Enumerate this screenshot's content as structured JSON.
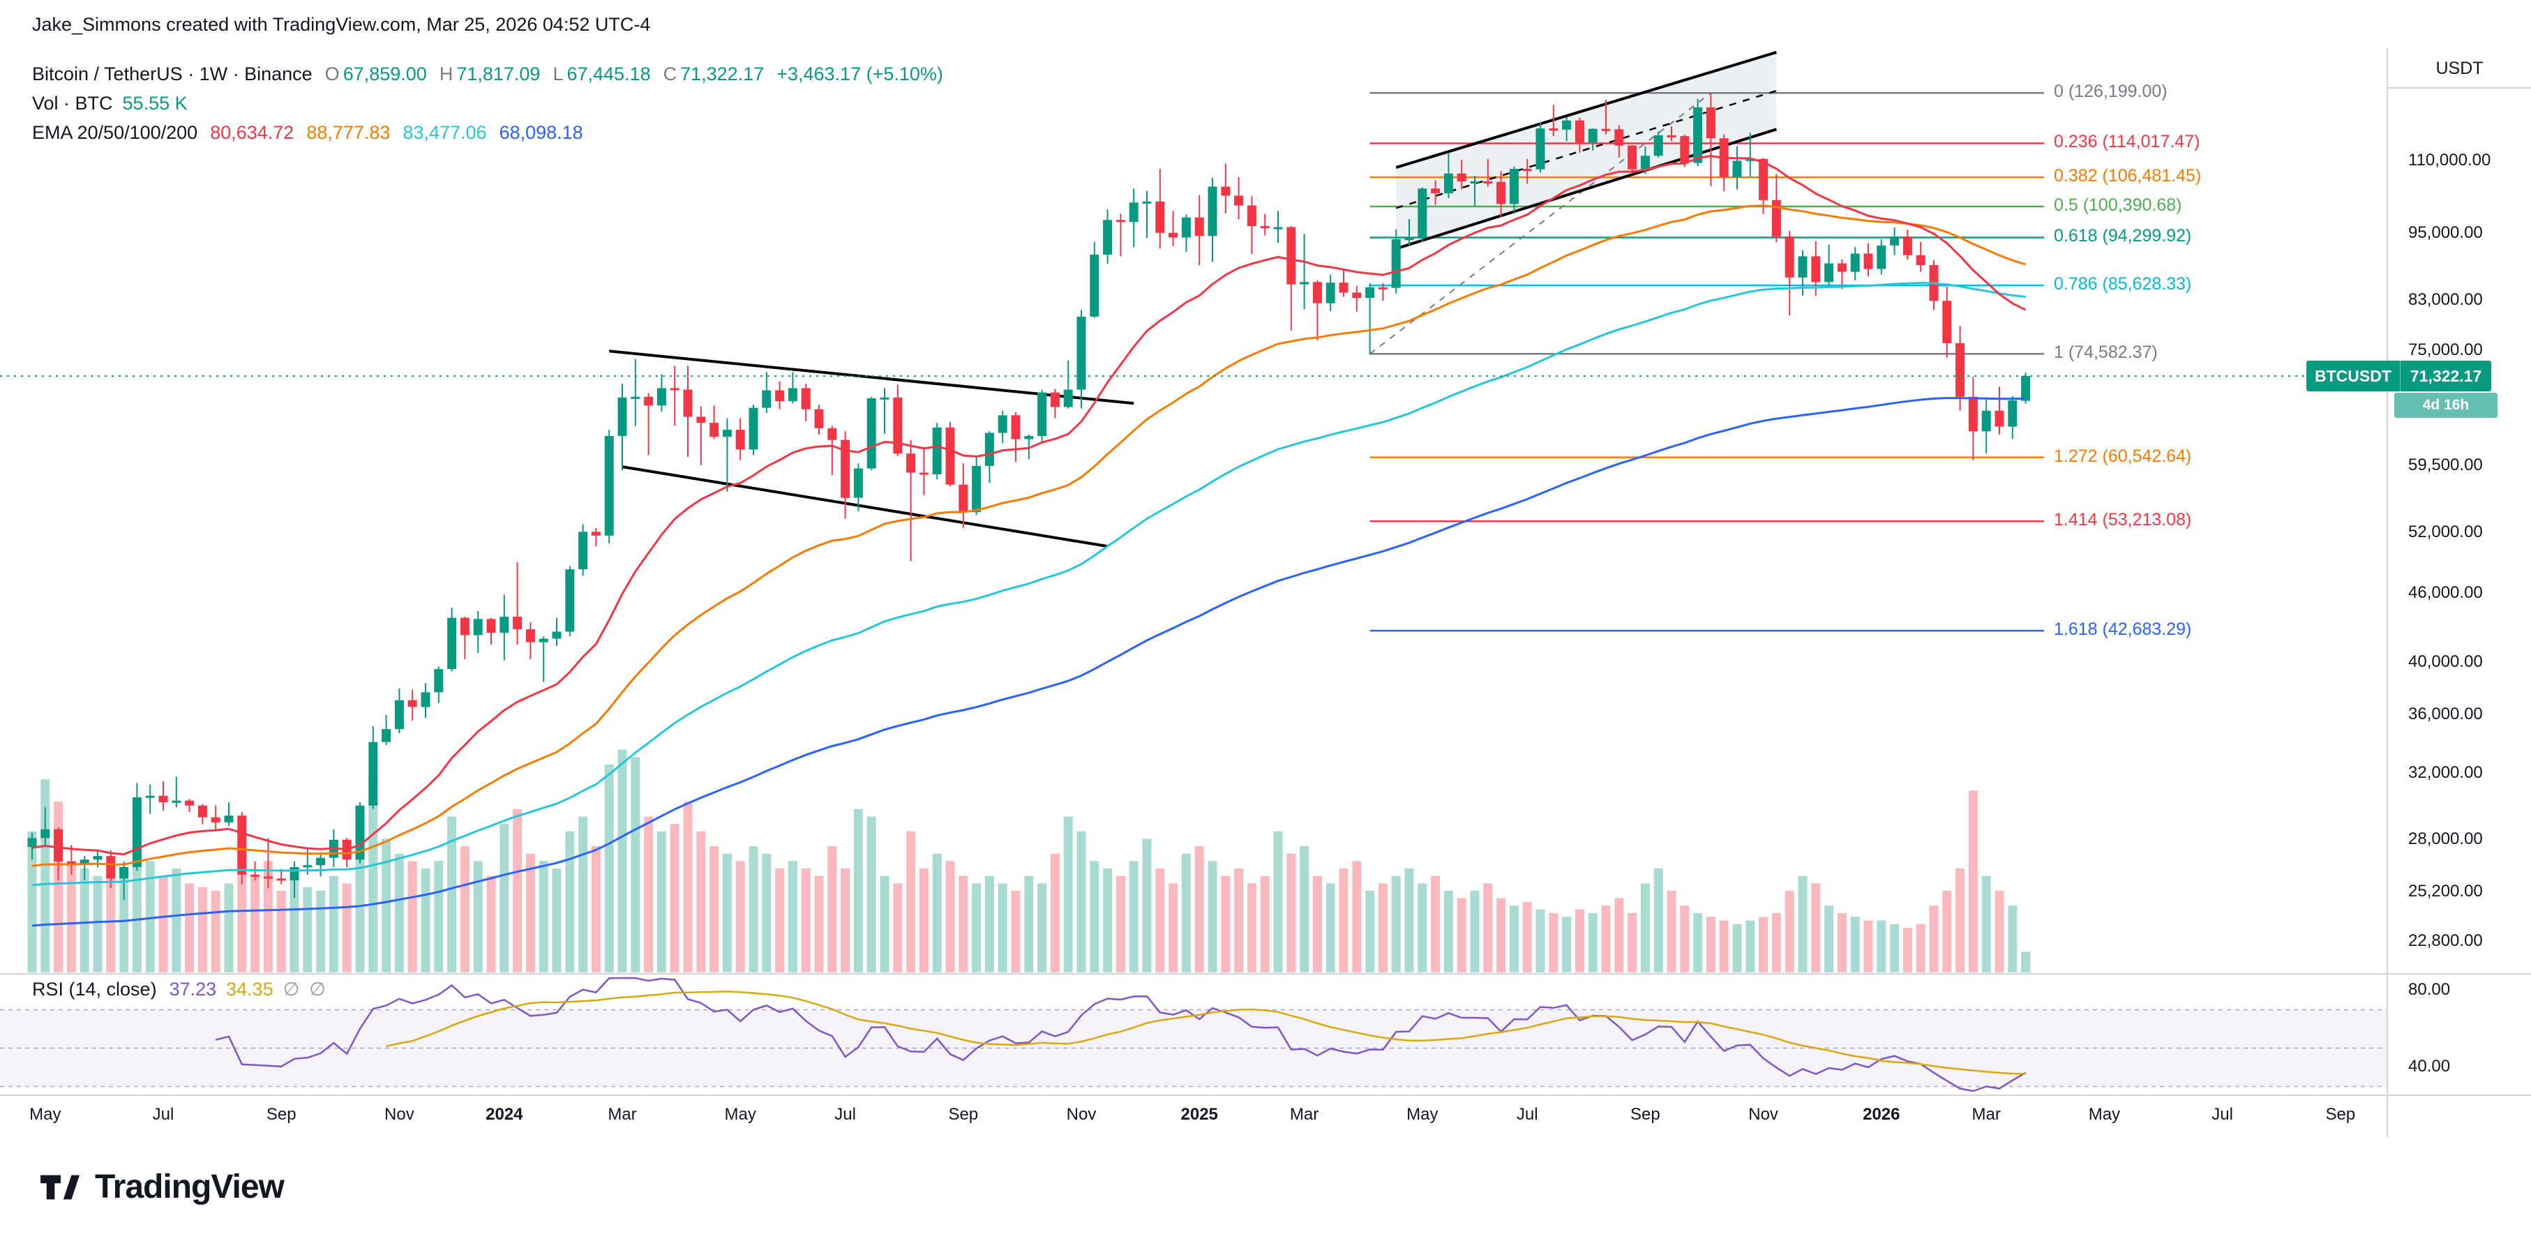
{
  "attribution": "Jake_Simmons created with TradingView.com, Mar 25, 2026 04:52 UTC-4",
  "header": {
    "symbol": "Bitcoin / TetherUS · 1W · Binance",
    "ohlc": [
      {
        "label": "O",
        "value": "67,859.00"
      },
      {
        "label": "H",
        "value": "71,817.09"
      },
      {
        "label": "L",
        "value": "67,445.18"
      },
      {
        "label": "C",
        "value": "71,322.17"
      }
    ],
    "change": "+3,463.17 (+5.10%)",
    "vol_label": "Vol · BTC",
    "vol_value": "55.55 K",
    "ema_label": "EMA 20/50/100/200",
    "ema_values": [
      {
        "value": "80,634.72",
        "color": "#f23645"
      },
      {
        "value": "88,777.83",
        "color": "#f57c00"
      },
      {
        "value": "83,477.06",
        "color": "#26c6da"
      },
      {
        "value": "68,098.18",
        "color": "#2962ff"
      }
    ]
  },
  "rsi_header": {
    "label": "RSI (14, close)",
    "rsi_value": "37.23",
    "ma_value": "34.35",
    "hidden1": "∅",
    "hidden2": "∅"
  },
  "axis": {
    "unit": "USDT"
  },
  "badge": {
    "symbol": "BTCUSDT",
    "price": "71,322.17",
    "countdown": "4d 16h"
  },
  "logo_text": "TradingView",
  "chart_data": {
    "type": "candlestick",
    "title": "Bitcoin / TetherUS · 1W · Binance",
    "interval": "1W",
    "scale": "log",
    "price_unit_multiplier": 1000,
    "volume_unit": "K BTC",
    "vol_scale_max": 620,
    "colors": {
      "up": "#089981",
      "down": "#f23645",
      "vol_up": "rgba(8,153,129,0.35)",
      "vol_down": "rgba(242,54,69,0.35)"
    },
    "ema": {
      "periods": [
        20,
        50,
        100,
        200
      ],
      "colors": [
        "#f23645",
        "#f57c00",
        "#26c6da",
        "#2962ff"
      ],
      "seeds": [
        27.5,
        26.5,
        25.5,
        23.5
      ]
    },
    "rsi": {
      "period": 14,
      "color": "#7e57c2",
      "ma_color": "#d9a80d",
      "band": [
        30,
        70
      ],
      "band_fill": "rgba(126,87,194,0.08)"
    },
    "fib_start_week": 102,
    "fib_levels": [
      {
        "label": "0 (126,199.00)",
        "price": 126199.0,
        "color": "#787b86"
      },
      {
        "label": "0.236 (114,017.47)",
        "price": 114017.47,
        "color": "#f23645"
      },
      {
        "label": "0.382 (106,481.45)",
        "price": 106481.45,
        "color": "#f57c00"
      },
      {
        "label": "0.5 (100,390.68)",
        "price": 100390.68,
        "color": "#4caf50"
      },
      {
        "label": "0.618 (94,299.92)",
        "price": 94299.92,
        "color": "#089981"
      },
      {
        "label": "0.786 (85,628.33)",
        "price": 85628.33,
        "color": "#00bcd4"
      },
      {
        "label": "1 (74,582.37)",
        "price": 74582.37,
        "color": "#787b86"
      },
      {
        "label": "1.272 (60,542.64)",
        "price": 60542.64,
        "color": "#f57c00"
      },
      {
        "label": "1.414 (53,213.08)",
        "price": 53213.08,
        "color": "#f23645"
      },
      {
        "label": "1.618 (42,683.29)",
        "price": 42683.29,
        "color": "#2962ff"
      }
    ],
    "drawings": {
      "down_channel": {
        "color": "#000000",
        "upper": [
          [
            44,
            75.0
          ],
          [
            84,
            67.5
          ]
        ],
        "lower": [
          [
            45,
            59.4
          ],
          [
            82,
            50.6
          ]
        ]
      },
      "up_channel": {
        "color": "#000000",
        "fill": "rgba(96,133,153,0.12)",
        "lower": [
          [
            104,
            92.2
          ],
          [
            133,
            117.3
          ]
        ],
        "upper": [
          [
            104,
            108.6
          ],
          [
            133,
            137.0
          ]
        ]
      },
      "fib_trendline": {
        "color": "#787b86",
        "from": [
          102,
          74.582
        ],
        "to": [
          128,
          126.199
        ]
      }
    },
    "price_ticks": [
      {
        "v": 110000,
        "t": "110,000.00"
      },
      {
        "v": 95000,
        "t": "95,000.00"
      },
      {
        "v": 83000,
        "t": "83,000.00"
      },
      {
        "v": 75000,
        "t": "75,000.00"
      },
      {
        "v": 59500,
        "t": "59,500.00"
      },
      {
        "v": 52000,
        "t": "52,000.00"
      },
      {
        "v": 46000,
        "t": "46,000.00"
      },
      {
        "v": 40000,
        "t": "40,000.00"
      },
      {
        "v": 36000,
        "t": "36,000.00"
      },
      {
        "v": 32000,
        "t": "32,000.00"
      },
      {
        "v": 28000,
        "t": "28,000.00"
      },
      {
        "v": 25200,
        "t": "25,200.00"
      },
      {
        "v": 22800,
        "t": "22,800.00"
      }
    ],
    "rsi_ticks": [
      {
        "v": 80,
        "t": "80.00"
      },
      {
        "v": 40,
        "t": "40.00"
      }
    ],
    "time_labels": [
      {
        "t": "May",
        "w": 1
      },
      {
        "t": "Jul",
        "w": 10
      },
      {
        "t": "Sep",
        "w": 19
      },
      {
        "t": "Nov",
        "w": 28
      },
      {
        "t": "2024",
        "w": 36,
        "year": true
      },
      {
        "t": "Mar",
        "w": 45
      },
      {
        "t": "May",
        "w": 54
      },
      {
        "t": "Jul",
        "w": 62
      },
      {
        "t": "Sep",
        "w": 71
      },
      {
        "t": "Nov",
        "w": 80
      },
      {
        "t": "2025",
        "w": 89,
        "year": true
      },
      {
        "t": "Mar",
        "w": 97
      },
      {
        "t": "May",
        "w": 106
      },
      {
        "t": "Jul",
        "w": 114
      },
      {
        "t": "Sep",
        "w": 123
      },
      {
        "t": "Nov",
        "w": 132
      },
      {
        "t": "2026",
        "w": 141,
        "year": true
      },
      {
        "t": "Mar",
        "w": 149
      },
      {
        "t": "May",
        "w": 158
      },
      {
        "t": "Jul",
        "w": 167
      },
      {
        "t": "Sep",
        "w": 176
      }
    ],
    "candles": [
      [
        27.6,
        28.4,
        26.9,
        28.1,
        380
      ],
      [
        28.1,
        29.9,
        27.7,
        28.6,
        520
      ],
      [
        28.6,
        28.7,
        25.8,
        26.8,
        460
      ],
      [
        26.8,
        27.7,
        26.1,
        26.7,
        300
      ],
      [
        26.7,
        27.1,
        25.8,
        26.9,
        280
      ],
      [
        26.9,
        27.4,
        26.5,
        27.1,
        260
      ],
      [
        27.1,
        27.4,
        25.4,
        25.9,
        300
      ],
      [
        25.9,
        26.8,
        24.8,
        26.5,
        280
      ],
      [
        26.5,
        31.4,
        26.3,
        30.5,
        420
      ],
      [
        30.5,
        31.3,
        29.5,
        30.6,
        300
      ],
      [
        30.6,
        31.5,
        29.7,
        30.2,
        260
      ],
      [
        30.2,
        31.8,
        29.9,
        30.3,
        280
      ],
      [
        30.3,
        30.4,
        29.6,
        30.0,
        240
      ],
      [
        30.0,
        30.1,
        28.9,
        29.3,
        230
      ],
      [
        29.3,
        30.0,
        28.6,
        29.0,
        220
      ],
      [
        29.0,
        30.2,
        28.8,
        29.4,
        240
      ],
      [
        29.4,
        29.6,
        25.6,
        26.1,
        380
      ],
      [
        26.1,
        26.8,
        25.8,
        26.0,
        260
      ],
      [
        26.0,
        28.1,
        25.4,
        25.9,
        300
      ],
      [
        25.9,
        26.4,
        25.6,
        25.8,
        220
      ],
      [
        25.8,
        26.8,
        24.9,
        26.5,
        260
      ],
      [
        26.5,
        27.5,
        26.1,
        26.6,
        230
      ],
      [
        26.6,
        27.3,
        26.0,
        27.0,
        220
      ],
      [
        27.0,
        28.6,
        26.5,
        28.0,
        260
      ],
      [
        28.0,
        28.1,
        26.5,
        26.9,
        240
      ],
      [
        26.9,
        30.2,
        26.7,
        30.0,
        380
      ],
      [
        30.0,
        35.2,
        29.8,
        34.1,
        520
      ],
      [
        34.1,
        36.0,
        33.9,
        35.0,
        360
      ],
      [
        35.0,
        38.0,
        34.7,
        37.1,
        320
      ],
      [
        37.1,
        37.9,
        35.6,
        36.6,
        300
      ],
      [
        36.6,
        38.4,
        35.8,
        37.7,
        280
      ],
      [
        37.7,
        39.7,
        36.9,
        39.5,
        300
      ],
      [
        39.5,
        44.7,
        39.3,
        43.8,
        420
      ],
      [
        43.8,
        43.9,
        40.3,
        42.3,
        340
      ],
      [
        42.3,
        44.4,
        40.8,
        43.7,
        300
      ],
      [
        43.7,
        43.8,
        41.5,
        42.5,
        260
      ],
      [
        42.5,
        45.9,
        40.2,
        43.9,
        400
      ],
      [
        43.9,
        49.0,
        41.5,
        42.8,
        440
      ],
      [
        42.8,
        43.4,
        40.3,
        41.7,
        320
      ],
      [
        41.7,
        42.2,
        38.5,
        42.0,
        300
      ],
      [
        42.0,
        43.8,
        41.4,
        42.6,
        280
      ],
      [
        42.6,
        48.6,
        42.2,
        48.3,
        380
      ],
      [
        48.3,
        52.9,
        47.7,
        52.1,
        420
      ],
      [
        52.1,
        52.5,
        50.6,
        51.7,
        340
      ],
      [
        51.7,
        64.0,
        50.9,
        63.2,
        560
      ],
      [
        63.2,
        70.2,
        59.0,
        68.3,
        600
      ],
      [
        68.3,
        73.8,
        64.5,
        68.4,
        580
      ],
      [
        68.4,
        68.9,
        60.8,
        67.2,
        420
      ],
      [
        67.2,
        71.6,
        66.4,
        69.6,
        380
      ],
      [
        69.6,
        72.8,
        64.5,
        69.4,
        400
      ],
      [
        69.4,
        72.8,
        60.6,
        65.7,
        460
      ],
      [
        65.7,
        67.1,
        59.6,
        64.9,
        380
      ],
      [
        64.9,
        67.2,
        62.8,
        63.1,
        340
      ],
      [
        63.1,
        65.5,
        56.5,
        64.0,
        320
      ],
      [
        64.0,
        65.5,
        60.2,
        61.5,
        300
      ],
      [
        61.5,
        67.3,
        60.8,
        66.9,
        340
      ],
      [
        66.9,
        71.9,
        66.2,
        69.3,
        320
      ],
      [
        69.3,
        70.6,
        66.7,
        67.8,
        280
      ],
      [
        67.8,
        71.9,
        67.5,
        69.6,
        300
      ],
      [
        69.6,
        70.2,
        65.1,
        66.7,
        280
      ],
      [
        66.7,
        67.3,
        63.4,
        64.2,
        260
      ],
      [
        64.2,
        64.5,
        58.4,
        62.7,
        340
      ],
      [
        62.7,
        63.8,
        53.5,
        55.8,
        280
      ],
      [
        55.8,
        59.8,
        54.3,
        59.2,
        440
      ],
      [
        59.2,
        68.4,
        59.0,
        68.2,
        420
      ],
      [
        68.2,
        69.6,
        63.5,
        68.3,
        260
      ],
      [
        68.3,
        70.1,
        60.7,
        61.0,
        240
      ],
      [
        61.0,
        62.7,
        49.1,
        58.7,
        380
      ],
      [
        58.7,
        61.8,
        56.1,
        58.5,
        280
      ],
      [
        58.5,
        64.9,
        57.9,
        64.3,
        320
      ],
      [
        64.3,
        65.0,
        57.1,
        57.3,
        300
      ],
      [
        57.3,
        59.8,
        52.5,
        54.2,
        260
      ],
      [
        54.2,
        60.6,
        53.9,
        59.5,
        240
      ],
      [
        59.5,
        63.8,
        57.5,
        63.6,
        260
      ],
      [
        63.6,
        66.5,
        62.3,
        65.9,
        240
      ],
      [
        65.9,
        66.3,
        60.0,
        62.8,
        220
      ],
      [
        62.8,
        63.4,
        60.3,
        63.2,
        260
      ],
      [
        63.2,
        69.4,
        62.5,
        69.0,
        240
      ],
      [
        69.0,
        69.5,
        65.5,
        67.0,
        320
      ],
      [
        67.0,
        73.6,
        66.8,
        69.4,
        420
      ],
      [
        69.4,
        81.5,
        66.8,
        80.4,
        380
      ],
      [
        80.4,
        93.5,
        80.2,
        91.1,
        300
      ],
      [
        91.1,
        99.8,
        89.4,
        97.7,
        280
      ],
      [
        97.7,
        98.9,
        90.8,
        97.3,
        260
      ],
      [
        97.3,
        104.1,
        92.5,
        101.2,
        300
      ],
      [
        101.2,
        103.6,
        94.2,
        101.4,
        360
      ],
      [
        101.4,
        108.3,
        92.2,
        95.2,
        280
      ],
      [
        95.2,
        99.5,
        92.7,
        94.3,
        240
      ],
      [
        94.3,
        98.8,
        91.6,
        98.2,
        320
      ],
      [
        98.2,
        102.7,
        89.2,
        94.6,
        340
      ],
      [
        94.6,
        106.4,
        89.8,
        104.5,
        300
      ],
      [
        104.5,
        109.4,
        99.0,
        102.6,
        260
      ],
      [
        102.6,
        106.5,
        97.8,
        100.6,
        280
      ],
      [
        100.6,
        102.5,
        91.2,
        96.5,
        240
      ],
      [
        96.5,
        98.9,
        94.7,
        96.1,
        260
      ],
      [
        96.1,
        99.5,
        93.3,
        96.3,
        380
      ],
      [
        96.3,
        96.5,
        78.2,
        85.8,
        320
      ],
      [
        85.8,
        95.0,
        81.6,
        86.2,
        340
      ],
      [
        86.2,
        86.5,
        76.6,
        82.6,
        260
      ],
      [
        82.6,
        87.5,
        81.3,
        86.1,
        240
      ],
      [
        86.1,
        88.5,
        83.7,
        84.4,
        280
      ],
      [
        84.4,
        85.5,
        81.2,
        83.5,
        300
      ],
      [
        83.5,
        86.0,
        74.5,
        85.3,
        220
      ],
      [
        85.3,
        86.0,
        83.0,
        85.2,
        240
      ],
      [
        85.2,
        95.9,
        84.2,
        94.0,
        260
      ],
      [
        94.0,
        97.9,
        92.9,
        94.2,
        280
      ],
      [
        94.2,
        104.3,
        93.5,
        104.1,
        240
      ],
      [
        104.1,
        105.8,
        100.7,
        103.1,
        260
      ],
      [
        103.1,
        111.9,
        102.1,
        107.3,
        220
      ],
      [
        107.3,
        110.3,
        103.9,
        105.6,
        200
      ],
      [
        105.6,
        106.8,
        100.4,
        105.6,
        220
      ],
      [
        105.6,
        110.5,
        104.5,
        105.5,
        240
      ],
      [
        105.5,
        107.8,
        98.2,
        100.9,
        200
      ],
      [
        100.9,
        108.8,
        98.9,
        108.3,
        180
      ],
      [
        108.3,
        110.5,
        105.1,
        108.2,
        190
      ],
      [
        108.2,
        118.9,
        107.5,
        117.5,
        170
      ],
      [
        117.5,
        123.2,
        115.7,
        117.2,
        160
      ],
      [
        117.2,
        120.2,
        114.5,
        119.4,
        150
      ],
      [
        119.4,
        120.0,
        111.9,
        114.2,
        170
      ],
      [
        114.2,
        117.5,
        112.4,
        117.4,
        160
      ],
      [
        117.4,
        124.5,
        116.1,
        117.3,
        180
      ],
      [
        117.3,
        118.3,
        110.8,
        113.5,
        200
      ],
      [
        113.5,
        113.6,
        107.3,
        108.2,
        160
      ],
      [
        108.2,
        113.3,
        107.2,
        111.2,
        240
      ],
      [
        111.2,
        116.8,
        110.8,
        115.9,
        280
      ],
      [
        115.9,
        118.0,
        114.5,
        115.7,
        220
      ],
      [
        115.7,
        116.0,
        108.7,
        109.6,
        180
      ],
      [
        109.6,
        124.7,
        108.9,
        122.6,
        160
      ],
      [
        122.6,
        126.199,
        104.6,
        115.2,
        150
      ],
      [
        115.2,
        116.1,
        103.5,
        106.5,
        140
      ],
      [
        106.5,
        113.4,
        103.9,
        110.1,
        130
      ],
      [
        110.1,
        116.5,
        106.6,
        110.5,
        140
      ],
      [
        110.5,
        110.7,
        98.9,
        101.7,
        150
      ],
      [
        101.7,
        107.2,
        93.4,
        94.5,
        160
      ],
      [
        94.5,
        95.6,
        80.6,
        87.0,
        220
      ],
      [
        87.0,
        91.9,
        83.9,
        90.8,
        260
      ],
      [
        90.8,
        93.6,
        83.8,
        86.2,
        240
      ],
      [
        86.2,
        93.0,
        85.3,
        89.5,
        180
      ],
      [
        89.5,
        90.2,
        85.0,
        88.0,
        160
      ],
      [
        88.0,
        92.5,
        86.5,
        91.3,
        150
      ],
      [
        91.3,
        93.2,
        87.2,
        88.5,
        140
      ],
      [
        88.5,
        94.0,
        87.5,
        92.8,
        140
      ],
      [
        92.8,
        96.2,
        91.0,
        94.5,
        130
      ],
      [
        94.5,
        95.8,
        90.2,
        91.0,
        120
      ],
      [
        91.0,
        93.5,
        88.0,
        89.2,
        130
      ],
      [
        89.2,
        90.1,
        81.5,
        83.0,
        180
      ],
      [
        83.0,
        85.4,
        74.0,
        76.2,
        220
      ],
      [
        76.2,
        78.9,
        66.5,
        68.4,
        280
      ],
      [
        68.4,
        71.2,
        60.2,
        63.8,
        490
      ],
      [
        63.8,
        68.0,
        61.0,
        66.5,
        260
      ],
      [
        66.5,
        69.8,
        63.4,
        64.4,
        220
      ],
      [
        64.4,
        68.5,
        62.8,
        67.9,
        180
      ],
      [
        67.859,
        71.817,
        67.445,
        71.322,
        55.55
      ]
    ]
  }
}
